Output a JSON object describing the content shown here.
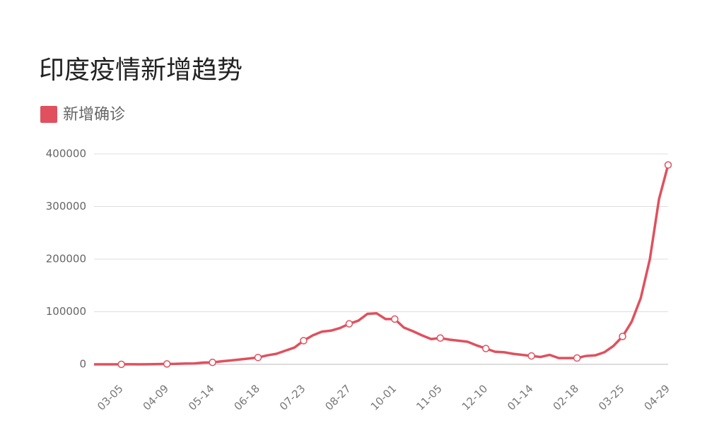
{
  "chart_data": {
    "type": "line",
    "title": "印度疫情新增趋势",
    "categories": [
      null,
      null,
      null,
      "03-05",
      null,
      null,
      null,
      null,
      "04-09",
      null,
      null,
      null,
      null,
      "05-14",
      null,
      null,
      null,
      null,
      "06-18",
      null,
      null,
      null,
      null,
      "07-23",
      null,
      null,
      null,
      null,
      "08-27",
      null,
      null,
      null,
      null,
      "10-01",
      null,
      null,
      null,
      null,
      "11-05",
      null,
      null,
      null,
      null,
      "12-10",
      null,
      null,
      null,
      null,
      "01-14",
      null,
      null,
      null,
      null,
      "02-18",
      null,
      null,
      null,
      null,
      "03-25",
      null,
      null,
      null,
      null,
      "04-29"
    ],
    "series": [
      {
        "name": "新增确诊",
        "color": "#e0505e",
        "values": [
          0,
          0,
          0,
          30,
          70,
          50,
          90,
          500,
          800,
          1000,
          1500,
          1800,
          3300,
          3700,
          5600,
          7400,
          9300,
          11000,
          13000,
          17000,
          20000,
          26000,
          32000,
          45000,
          55000,
          62000,
          64000,
          69000,
          77000,
          83000,
          96000,
          97000,
          86000,
          86000,
          70000,
          63000,
          55000,
          48000,
          50000,
          47000,
          45000,
          43000,
          36000,
          30000,
          24000,
          23000,
          20000,
          18000,
          16000,
          14000,
          18000,
          12000,
          12000,
          12000,
          16000,
          17000,
          23000,
          35000,
          53000,
          81000,
          126000,
          200000,
          314000,
          379000
        ]
      }
    ],
    "ylim": [
      0,
      400000
    ],
    "yticks": [
      0,
      100000,
      200000,
      300000,
      400000
    ],
    "grid": true
  }
}
